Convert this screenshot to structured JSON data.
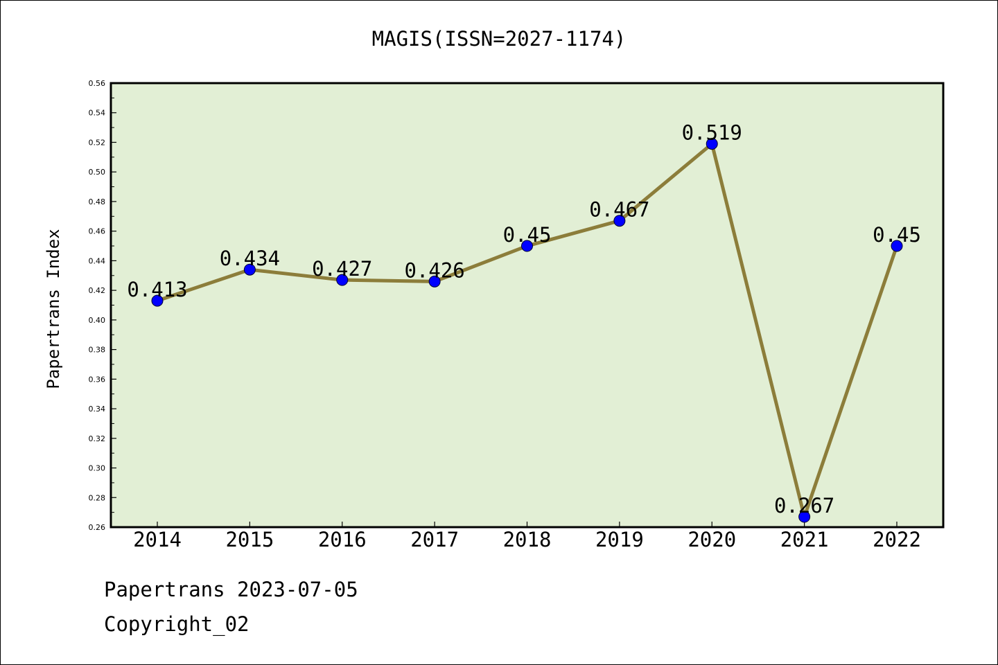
{
  "chart_data": {
    "type": "line",
    "title": "MAGIS(ISSN=2027-1174)",
    "xlabel": "",
    "ylabel": "Papertrans Index",
    "categories": [
      "2014",
      "2015",
      "2016",
      "2017",
      "2018",
      "2019",
      "2020",
      "2021",
      "2022"
    ],
    "series": [
      {
        "values": [
          0.413,
          0.434,
          0.427,
          0.426,
          0.45,
          0.467,
          0.519,
          0.267,
          0.45
        ],
        "data_labels": [
          "0.413",
          "0.434",
          "0.427",
          "0.426",
          "0.45",
          "0.467",
          "0.519",
          "0.267",
          "0.45"
        ],
        "line_color": "#8c7d3a",
        "marker_color": "#0000ff"
      }
    ],
    "ylim": [
      0.26,
      0.56
    ],
    "yticks": [
      "0.26",
      "0.28",
      "0.30",
      "0.32",
      "0.34",
      "0.36",
      "0.38",
      "0.40",
      "0.42",
      "0.44",
      "0.46",
      "0.48",
      "0.50",
      "0.52",
      "0.54",
      "0.56"
    ],
    "grid": false,
    "legend": "none",
    "plot_background": "#e2efd5"
  },
  "footer": {
    "line1": "Papertrans 2023-07-05",
    "line2": "Copyright_02"
  }
}
